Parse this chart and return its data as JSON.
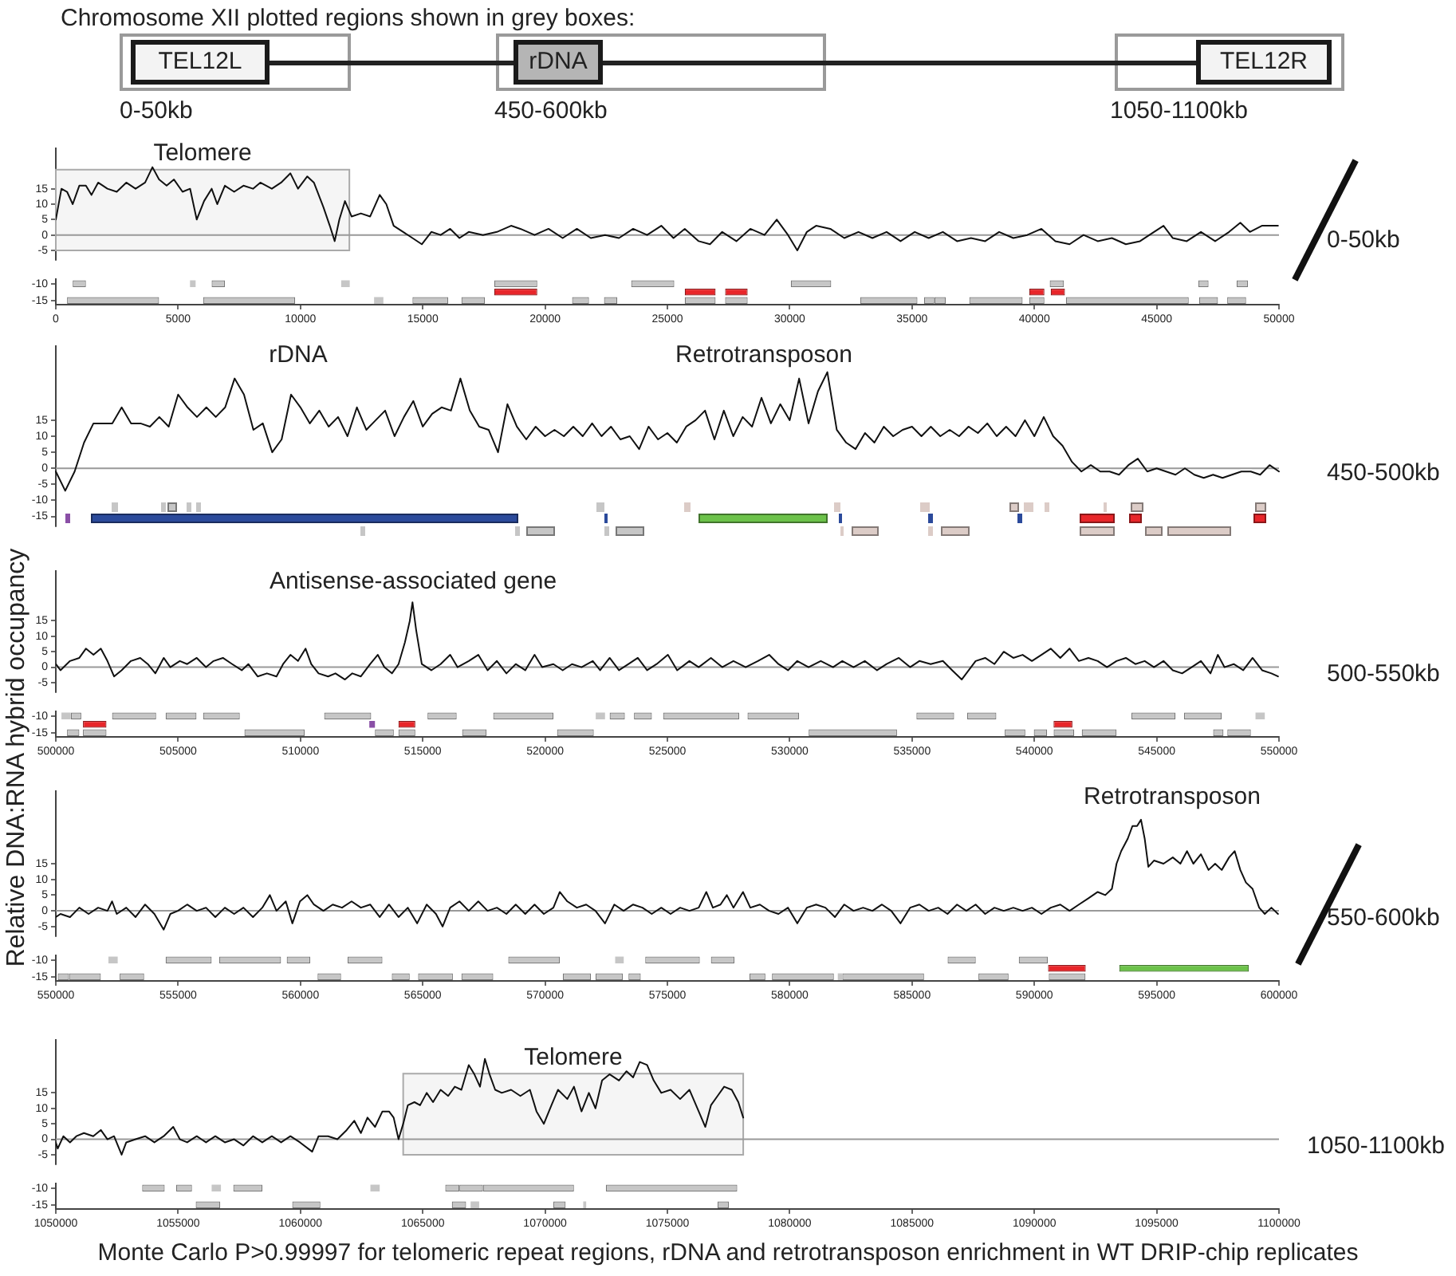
{
  "chart_data": [
    {
      "type": "other",
      "title": "Chromosome XII plotted regions shown in grey boxes:",
      "annotations": [
        "TEL12L",
        "rDNA",
        "TEL12R",
        "0-50kb",
        "450-600kb",
        "1050-1100kb"
      ]
    },
    {
      "type": "line",
      "tick_labels": "y",
      "xlim": [
        0,
        50000
      ],
      "ylim": [
        -8,
        28
      ],
      "yticks": [
        -5,
        0,
        5,
        10,
        15
      ],
      "color": "#111111",
      "ref_lines": [
        {
          "axis": "y",
          "value": 0,
          "color": "#999999"
        }
      ],
      "bands": [
        {
          "axis": "x",
          "from": 0,
          "to": 12000,
          "label": "Telomere",
          "color": "#aaaaaa"
        }
      ],
      "annotations": [
        "0-50kb"
      ],
      "x": [
        0,
        230,
        460,
        690,
        960,
        1230,
        1460,
        1730,
        2110,
        2490,
        2880,
        3260,
        3650,
        3950,
        4220,
        4530,
        4830,
        5180,
        5490,
        5760,
        6060,
        6370,
        6600,
        6910,
        7290,
        7670,
        8060,
        8360,
        8830,
        9210,
        9590,
        9900,
        10280,
        10550,
        10940,
        11200,
        11400,
        11590,
        11820,
        12090,
        12470,
        12850,
        13240,
        13510,
        13810,
        14200,
        14580,
        14960,
        15350,
        15730,
        16120,
        16500,
        16880,
        17460,
        18030,
        18610,
        18990,
        19570,
        20140,
        20720,
        21300,
        21870,
        22450,
        23020,
        23600,
        24170,
        24750,
        25250,
        25710,
        26280,
        26740,
        27240,
        27820,
        28390,
        28970,
        29470,
        29930,
        30310,
        30700,
        31080,
        31660,
        32230,
        32810,
        33380,
        33960,
        34530,
        35110,
        35680,
        36260,
        36840,
        37410,
        37990,
        38560,
        39140,
        39710,
        40290,
        40860,
        41440,
        42010,
        42590,
        43170,
        43740,
        44320,
        44890,
        45280,
        45660,
        46230,
        46810,
        47390,
        47960,
        48420,
        48810,
        49300,
        49960
      ],
      "values": [
        5,
        15,
        14,
        10,
        16,
        16,
        13,
        17,
        15,
        14,
        17,
        15,
        17,
        22,
        18,
        16,
        18,
        14,
        15,
        5,
        11,
        15,
        10,
        16,
        14,
        16,
        15,
        17,
        15,
        17,
        20,
        15,
        19,
        17,
        9,
        3,
        -2,
        5,
        11,
        6,
        7,
        6,
        13,
        10,
        3,
        1,
        -1,
        -3,
        1,
        0,
        2,
        -1,
        1,
        0,
        1,
        3,
        2,
        0,
        2,
        -1,
        2,
        -1,
        0,
        -1,
        2,
        0,
        3,
        -1,
        2,
        -2,
        -3,
        1,
        -2,
        2,
        0,
        5,
        0,
        -5,
        1,
        3,
        2,
        -1,
        1,
        -1,
        1,
        -2,
        1,
        -1,
        1,
        -2,
        -1,
        -2,
        1,
        -1,
        0,
        2,
        -2,
        -3,
        0,
        -2,
        -1,
        -3,
        -2,
        1,
        3,
        -1,
        -2,
        1,
        -2,
        1,
        4,
        1,
        3,
        3
      ]
    },
    {
      "type": "bar",
      "orientation": "horizontal",
      "categories": [
        "-10",
        null,
        "-15"
      ],
      "xlim": [
        0,
        50000
      ],
      "xticks": [
        0,
        5000,
        10000,
        15000,
        20000,
        25000,
        30000,
        35000,
        40000,
        45000,
        50000
      ],
      "series": [
        {
          "base": [
            690,
            17920,
            460
          ],
          "values": [
            540,
            1760,
            3760
          ],
          "colors": [
            "#c6c6c6",
            "#e8262a",
            "#c6c6c6"
          ]
        },
        {
          "base": [
            5485,
            25710,
            6020
          ],
          "values": [
            230,
            1260,
            3760
          ],
          "colors": [
            "#c6c6c6",
            "#e8262a",
            "#c6c6c6"
          ]
        },
        {
          "base": [
            6370,
            27360,
            13010
          ],
          "values": [
            540,
            920,
            380
          ],
          "colors": [
            "#c6c6c6",
            "#e8262a",
            "#c6c6c6"
          ]
        },
        {
          "base": [
            11665,
            39790,
            14580
          ],
          "values": [
            350,
            620,
            1460
          ],
          "colors": [
            "#c6c6c6",
            "#e8262a",
            "#c6c6c6"
          ]
        },
        {
          "base": [
            17920,
            40670,
            16580
          ],
          "values": [
            1760,
            580,
            960
          ],
          "colors": [
            "#c6c6c6",
            "#e8262a",
            "#c6c6c6"
          ]
        },
        {
          "base": [
            23520,
            null,
            21105
          ],
          "values": [
            1760,
            null,
            690
          ],
          "color": "#c6c6c6"
        },
        {
          "base": [
            30045,
            null,
            22410
          ],
          "values": [
            1650,
            null,
            540
          ],
          "color": "#c6c6c6"
        },
        {
          "base": [
            40630,
            null,
            25710
          ],
          "values": [
            580,
            null,
            1260
          ],
          "color": "#c6c6c6"
        },
        {
          "base": [
            46700,
            null,
            27360
          ],
          "values": [
            420,
            null,
            920
          ],
          "color": "#c6c6c6"
        },
        {
          "base": [
            48270,
            null,
            32880
          ],
          "values": [
            460,
            null,
            2340
          ],
          "color": "#c6c6c6"
        },
        {
          "base": [
            null,
            null,
            35490
          ],
          "values": [
            null,
            null,
            420
          ],
          "color": "#c6c6c6"
        },
        {
          "base": [
            null,
            null,
            35920
          ],
          "values": [
            null,
            null,
            460
          ],
          "color": "#c6c6c6"
        },
        {
          "base": [
            null,
            null,
            37340
          ],
          "values": [
            null,
            null,
            2180
          ],
          "color": "#c6c6c6"
        },
        {
          "base": [
            null,
            null,
            39790
          ],
          "values": [
            null,
            null,
            620
          ],
          "color": "#c6c6c6"
        },
        {
          "base": [
            null,
            null,
            41290
          ],
          "values": [
            null,
            null,
            5020
          ],
          "color": "#c6c6c6"
        },
        {
          "base": [
            null,
            null,
            46735
          ],
          "values": [
            null,
            null,
            770
          ],
          "color": "#c6c6c6"
        },
        {
          "base": [
            null,
            null,
            47885
          ],
          "values": [
            null,
            null,
            770
          ],
          "color": "#c6c6c6"
        }
      ]
    },
    {
      "type": "line",
      "tick_labels": "y",
      "ylim": [
        -18,
        38
      ],
      "yticks": [
        -15,
        -10,
        -5,
        0,
        5,
        10,
        15
      ],
      "color": "#111111",
      "ref_lines": [
        {
          "axis": "y",
          "value": 0,
          "color": "#999999"
        }
      ],
      "annotations": [
        "rDNA",
        "Retrotransposon",
        "450-500kb"
      ],
      "categories": [
        null,
        null,
        null,
        null,
        null,
        null,
        null,
        null,
        null,
        null,
        null,
        null,
        null,
        null,
        null,
        null,
        null,
        null,
        null,
        null,
        null,
        null,
        null,
        null,
        null,
        null,
        null,
        null,
        null,
        null,
        null,
        null,
        null,
        null,
        null,
        null,
        null,
        null,
        null,
        null,
        null,
        null,
        null,
        null,
        null,
        null,
        null,
        null,
        null,
        null,
        null,
        null,
        null,
        null,
        null,
        null,
        null,
        null,
        null,
        null,
        null,
        null,
        null,
        null,
        null,
        null,
        null,
        null,
        null,
        null,
        null,
        null,
        null,
        null,
        null,
        null,
        null,
        null,
        null,
        null,
        null,
        null,
        null,
        null,
        null,
        null,
        null,
        null,
        null,
        null,
        null,
        null,
        null,
        null,
        null,
        null,
        null,
        null,
        null,
        null,
        null,
        null,
        null,
        null,
        null,
        null,
        null,
        null,
        null,
        null,
        null,
        null,
        null,
        null,
        null,
        null,
        null,
        null,
        null,
        null,
        null,
        null,
        null,
        null,
        null,
        null,
        null,
        null,
        null,
        null,
        null
      ],
      "values": [
        -1,
        -7,
        -1,
        8,
        14,
        14,
        14,
        19,
        14,
        14,
        13,
        16,
        13,
        23,
        19,
        16,
        19,
        16,
        19,
        28,
        23,
        12,
        14,
        5,
        9,
        23,
        19,
        14,
        18,
        13,
        16,
        10,
        19,
        12,
        15,
        18,
        10,
        16,
        21,
        13,
        17,
        19,
        18,
        28,
        18,
        13,
        12,
        5,
        20,
        13,
        9,
        13,
        10,
        12,
        10,
        13,
        10,
        14,
        10,
        13,
        9,
        10,
        6,
        13,
        9,
        11,
        8,
        13,
        15,
        18,
        9,
        18,
        10,
        16,
        13,
        22,
        14,
        20,
        15,
        28,
        14,
        24,
        30,
        12,
        8,
        6,
        11,
        8,
        13,
        10,
        12,
        13,
        10,
        13,
        10,
        12,
        10,
        13,
        11,
        14,
        10,
        13,
        10,
        15,
        10,
        16,
        10,
        7,
        2,
        -1,
        1,
        -1,
        -1,
        -2,
        1,
        3,
        -1,
        0,
        -1,
        -2,
        0,
        -2,
        -3,
        -2,
        -3,
        -2,
        -1,
        -1,
        -2,
        1,
        -1
      ]
    },
    {
      "type": "line",
      "tick_labels": "y",
      "ylabel": "Relative DNA:RNA hybrid occupancy",
      "xlim": [
        500000,
        550000
      ],
      "ylim": [
        -8,
        31
      ],
      "yticks": [
        -5,
        0,
        5,
        10,
        15
      ],
      "color": "#111111",
      "ref_lines": [
        {
          "axis": "y",
          "value": 0,
          "color": "#999999"
        }
      ],
      "annotations": [
        "Antisense-associated gene",
        "500-550kb"
      ],
      "x": [
        500000,
        500190,
        500580,
        500960,
        501230,
        501540,
        501840,
        502110,
        502380,
        502690,
        503070,
        503450,
        503760,
        504070,
        504410,
        504680,
        505070,
        505370,
        505760,
        506140,
        506450,
        506830,
        507210,
        507600,
        507870,
        508250,
        508630,
        509020,
        509290,
        509590,
        509900,
        510210,
        510440,
        510740,
        511130,
        511430,
        511820,
        512120,
        512470,
        512850,
        513160,
        513430,
        513740,
        514010,
        514270,
        514470,
        514580,
        514730,
        514960,
        515350,
        515730,
        516120,
        516420,
        516880,
        517270,
        517650,
        518030,
        518420,
        518800,
        519190,
        519570,
        519880,
        520340,
        520720,
        521100,
        521490,
        521950,
        522250,
        522640,
        523020,
        523410,
        523790,
        524170,
        524560,
        525020,
        525400,
        525900,
        526280,
        526780,
        527240,
        527700,
        528200,
        528700,
        529160,
        529540,
        529930,
        530310,
        530770,
        531270,
        531770,
        532150,
        532610,
        533070,
        533570,
        533960,
        534460,
        534920,
        535300,
        535760,
        536260,
        536640,
        537030,
        537220,
        537600,
        537990,
        538370,
        538750,
        539140,
        539520,
        539900,
        540290,
        540670,
        541060,
        541440,
        541820,
        542210,
        542590,
        542970,
        543360,
        543740,
        544130,
        544510,
        544890,
        545280,
        545660,
        546040,
        546430,
        546810,
        547200,
        547500,
        547770,
        548150,
        548540,
        548920,
        549310,
        549690,
        549960
      ],
      "values": [
        1,
        -1,
        2,
        3,
        6,
        4,
        6,
        2,
        -3,
        -1,
        2,
        3,
        1,
        -2,
        3,
        0,
        2,
        1,
        3,
        0,
        2,
        3,
        1,
        -1,
        1,
        -3,
        -2,
        -3,
        1,
        4,
        2,
        6,
        1,
        -2,
        -3,
        -2,
        -4,
        -2,
        -3,
        1,
        4,
        0,
        -2,
        1,
        8,
        15,
        21,
        12,
        1,
        -1,
        1,
        4,
        0,
        2,
        4,
        -1,
        2,
        -2,
        1,
        -1,
        4,
        0,
        1,
        -1,
        1,
        0,
        2,
        -1,
        3,
        -1,
        1,
        3,
        -1,
        1,
        4,
        -1,
        2,
        0,
        3,
        0,
        2,
        0,
        2,
        4,
        1,
        -1,
        2,
        0,
        2,
        0,
        2,
        0,
        2,
        -1,
        1,
        3,
        0,
        2,
        1,
        2,
        -1,
        -4,
        -2,
        2,
        3,
        1,
        5,
        3,
        4,
        2,
        4,
        6,
        3,
        6,
        2,
        3,
        2,
        0,
        2,
        3,
        1,
        2,
        0,
        2,
        -1,
        -2,
        0,
        2,
        -2,
        4,
        0,
        1,
        -1,
        3,
        -1,
        -2,
        -3
      ]
    },
    {
      "type": "bar",
      "orientation": "horizontal",
      "categories": [
        "-10",
        null,
        "-15"
      ],
      "xlim": [
        500000,
        550000
      ],
      "xticks": [
        500000,
        505000,
        510000,
        515000,
        520000,
        525000,
        530000,
        535000,
        540000,
        545000,
        550000
      ],
      "series": [
        {
          "base": [
            500230,
            501110,
            500460
          ],
          "values": [
            380,
            960,
            500
          ],
          "colors": [
            "#c6c6c6",
            "#e8262a",
            "#c6c6c6"
          ]
        },
        {
          "base": [
            500620,
            512815,
            501110
          ],
          "values": [
            420,
            230,
            960
          ],
          "colors": [
            "#c6c6c6",
            "#8a4fa6",
            "#c6c6c6"
          ]
        },
        {
          "base": [
            502300,
            514005,
            507710
          ],
          "values": [
            1800,
            690,
            2460
          ],
          "colors": [
            "#c6c6c6",
            "#e8262a",
            "#c6c6c6"
          ]
        },
        {
          "base": [
            504490,
            540785,
            513045
          ],
          "values": [
            1260,
            770,
            770
          ],
          "colors": [
            "#c6c6c6",
            "#e8262a",
            "#c6c6c6"
          ]
        },
        {
          "base": [
            506020,
            null,
            514005
          ],
          "values": [
            1500,
            null,
            690
          ],
          "color": "#c6c6c6"
        },
        {
          "base": [
            510970,
            null,
            516610
          ],
          "values": [
            1920,
            null,
            1000
          ],
          "color": "#c6c6c6"
        },
        {
          "base": [
            515195,
            null,
            520490
          ],
          "values": [
            1190,
            null,
            1500
          ],
          "color": "#c6c6c6"
        },
        {
          "base": [
            517880,
            null,
            530775
          ],
          "values": [
            2460,
            null,
            3610
          ],
          "color": "#c6c6c6"
        },
        {
          "base": [
            522070,
            null,
            538790
          ],
          "values": [
            380,
            null,
            840
          ],
          "color": "#c6c6c6"
        },
        {
          "base": [
            522640,
            null,
            539980
          ],
          "values": [
            620,
            null,
            540
          ],
          "color": "#c6c6c6"
        },
        {
          "base": [
            523635,
            null,
            540790
          ],
          "values": [
            730,
            null,
            840
          ],
          "color": "#c6c6c6"
        },
        {
          "base": [
            524825,
            null,
            541940
          ],
          "values": [
            3110,
            null,
            1420
          ],
          "color": "#c6c6c6"
        },
        {
          "base": [
            528275,
            null,
            547310
          ],
          "values": [
            2110,
            null,
            420
          ],
          "color": "#c6c6c6"
        },
        {
          "base": [
            535180,
            null,
            547890
          ],
          "values": [
            1540,
            null,
            960
          ],
          "color": "#c6c6c6"
        },
        {
          "base": [
            537255,
            null,
            null
          ],
          "values": [
            1190,
            null,
            null
          ],
          "color": "#c6c6c6"
        },
        {
          "base": [
            543970,
            null,
            null
          ],
          "values": [
            1800,
            null,
            null
          ],
          "color": "#c6c6c6"
        },
        {
          "base": [
            546120,
            null,
            null
          ],
          "values": [
            1540,
            null,
            null
          ],
          "color": "#c6c6c6"
        },
        {
          "base": [
            549040,
            null,
            null
          ],
          "values": [
            380,
            null,
            null
          ],
          "color": "#c6c6c6"
        }
      ]
    },
    {
      "type": "line",
      "tick_labels": "y",
      "xlim": [
        550000,
        600000
      ],
      "ylim": [
        -8,
        38
      ],
      "yticks": [
        -5,
        0,
        5,
        10,
        15
      ],
      "color": "#111111",
      "ref_lines": [
        {
          "axis": "y",
          "value": 0,
          "color": "#999999"
        }
      ],
      "annotations": [
        "Retrotransposon",
        "550-600kb"
      ],
      "x": [
        550000,
        550190,
        550580,
        550960,
        551340,
        551730,
        552110,
        552300,
        552490,
        552880,
        553260,
        553650,
        554030,
        554410,
        554680,
        554990,
        555370,
        555760,
        556140,
        556520,
        556910,
        557290,
        557670,
        558060,
        558440,
        558750,
        559020,
        559400,
        559670,
        559980,
        560280,
        560550,
        560940,
        561320,
        561700,
        562090,
        562470,
        562850,
        563240,
        563620,
        564010,
        564390,
        564770,
        565160,
        565540,
        565810,
        566120,
        566500,
        566880,
        567270,
        567650,
        568030,
        568420,
        568800,
        569190,
        569570,
        569950,
        570340,
        570600,
        570910,
        571300,
        571680,
        572060,
        572450,
        572830,
        573210,
        573600,
        573980,
        574360,
        574750,
        575130,
        575520,
        575900,
        576280,
        576590,
        576860,
        577170,
        577430,
        577700,
        578090,
        578390,
        578780,
        579160,
        579540,
        579930,
        580310,
        580700,
        581080,
        581460,
        581850,
        582230,
        582610,
        583000,
        583380,
        583770,
        584150,
        584530,
        584920,
        585300,
        585680,
        586070,
        586450,
        586840,
        587220,
        587600,
        587990,
        588370,
        588750,
        589140,
        589520,
        589900,
        590290,
        590670,
        591060,
        591440,
        591820,
        592210,
        592590,
        592900,
        593170,
        593360,
        593550,
        593820,
        594010,
        594200,
        594360,
        594510,
        594660,
        594890,
        595280,
        595660,
        595970,
        596240,
        596500,
        596810,
        597120,
        597390,
        597660,
        597960,
        598190,
        598420,
        598650,
        598920,
        599190,
        599420,
        599690,
        599960
      ],
      "values": [
        -2,
        -1,
        -2,
        1,
        -1,
        1,
        0,
        3,
        -1,
        1,
        -2,
        2,
        -1,
        -6,
        -1,
        0,
        2,
        0,
        1,
        -2,
        1,
        -1,
        1,
        -2,
        1,
        5,
        0,
        3,
        -4,
        3,
        5,
        2,
        0,
        2,
        1,
        3,
        1,
        2,
        -2,
        2,
        -2,
        1,
        -4,
        2,
        -1,
        -5,
        1,
        3,
        0,
        3,
        0,
        1,
        -1,
        2,
        -1,
        2,
        -1,
        1,
        6,
        3,
        1,
        2,
        0,
        -4,
        2,
        0,
        2,
        1,
        -1,
        1,
        -1,
        1,
        0,
        1,
        6,
        1,
        2,
        5,
        1,
        6,
        1,
        2,
        0,
        -1,
        1,
        -4,
        1,
        2,
        1,
        -2,
        2,
        0,
        1,
        0,
        2,
        0,
        -4,
        1,
        2,
        0,
        1,
        -1,
        2,
        0,
        2,
        -1,
        1,
        0,
        1,
        0,
        1,
        -1,
        1,
        2,
        0,
        2,
        4,
        6,
        5,
        7,
        15,
        19,
        23,
        27,
        27,
        29,
        23,
        14,
        16,
        15,
        17,
        15,
        19,
        15,
        18,
        13,
        15,
        13,
        17,
        19,
        13,
        9,
        7,
        1,
        -1,
        1,
        -1
      ]
    },
    {
      "type": "bar",
      "orientation": "horizontal",
      "categories": [
        "-10",
        null,
        "-15"
      ],
      "xlim": [
        550000,
        600000
      ],
      "xticks": [
        550000,
        555000,
        560000,
        565000,
        570000,
        575000,
        580000,
        585000,
        590000,
        595000,
        600000
      ],
      "series": [
        {
          "base": [
            552150,
            590560,
            550080
          ],
          "values": [
            380,
            1540,
            460
          ],
          "colors": [
            "#c6c6c6",
            "#e8262a",
            "#c6c6c6"
          ]
        },
        {
          "base": [
            554490,
            593470,
            550540
          ],
          "values": [
            1880,
            5300,
            1300
          ],
          "colors": [
            "#c6c6c6",
            "#6cc24a",
            "#c6c6c6"
          ]
        },
        {
          "base": [
            556675,
            null,
            552610
          ],
          "values": [
            2530,
            null,
            1000
          ],
          "color": "#c6c6c6"
        },
        {
          "base": [
            559440,
            null,
            560700
          ],
          "values": [
            960,
            null,
            960
          ],
          "color": "#c6c6c6"
        },
        {
          "base": [
            561930,
            null,
            563735
          ],
          "values": [
            1420,
            null,
            730
          ],
          "color": "#c6c6c6"
        },
        {
          "base": [
            568495,
            null,
            564810
          ],
          "values": [
            2110,
            null,
            1420
          ],
          "color": "#c6c6c6"
        },
        {
          "base": [
            572865,
            null,
            566580
          ],
          "values": [
            350,
            null,
            1300
          ],
          "color": "#c6c6c6"
        },
        {
          "base": [
            574095,
            null,
            570725
          ],
          "values": [
            2230,
            null,
            1150
          ],
          "color": "#c6c6c6"
        },
        {
          "base": [
            576780,
            null,
            572065
          ],
          "values": [
            960,
            null,
            1110
          ],
          "color": "#c6c6c6"
        },
        {
          "base": [
            586455,
            null,
            573410
          ],
          "values": [
            1150,
            null,
            500
          ],
          "color": "#c6c6c6"
        },
        {
          "base": [
            589365,
            null,
            578355
          ],
          "values": [
            1190,
            null,
            650
          ],
          "color": "#c6c6c6"
        },
        {
          "base": [
            null,
            null,
            579275
          ],
          "values": [
            null,
            null,
            2530
          ],
          "color": "#c6c6c6"
        },
        {
          "base": [
            null,
            null,
            581965
          ],
          "values": [
            null,
            null,
            190
          ],
          "color": "#c6c6c6"
        },
        {
          "base": [
            null,
            null,
            582150
          ],
          "values": [
            null,
            null,
            3340
          ],
          "color": "#c6c6c6"
        },
        {
          "base": [
            null,
            null,
            587715
          ],
          "values": [
            null,
            null,
            1230
          ],
          "color": "#c6c6c6"
        },
        {
          "base": [
            null,
            null,
            590590
          ],
          "values": [
            null,
            null,
            1500
          ],
          "color": "#c6c6c6"
        }
      ]
    },
    {
      "type": "line",
      "tick_labels": "y",
      "xlim": [
        1050000,
        1100000
      ],
      "ylim": [
        -8,
        32
      ],
      "yticks": [
        -5,
        0,
        5,
        10,
        15
      ],
      "color": "#111111",
      "ref_lines": [
        {
          "axis": "y",
          "value": 0,
          "color": "#999999"
        }
      ],
      "bands": [
        {
          "axis": "x",
          "from": 1064200,
          "to": 1078100,
          "label": "Telomere",
          "color": "#aaaaaa"
        }
      ],
      "annotations": [
        "1050-1100kb"
      ],
      "x": [
        1050000,
        1050080,
        1050310,
        1050580,
        1050840,
        1051150,
        1051530,
        1051840,
        1052110,
        1052380,
        1052690,
        1052880,
        1053260,
        1053650,
        1054030,
        1054410,
        1054800,
        1055070,
        1055370,
        1055760,
        1056140,
        1056520,
        1056910,
        1057290,
        1057670,
        1058060,
        1058440,
        1058830,
        1059210,
        1059590,
        1059980,
        1060480,
        1060740,
        1061130,
        1061510,
        1061890,
        1062200,
        1062470,
        1062740,
        1063050,
        1063350,
        1063620,
        1063810,
        1064010,
        1064200,
        1064390,
        1064660,
        1064890,
        1065160,
        1065420,
        1065730,
        1066040,
        1066310,
        1066580,
        1066880,
        1067110,
        1067340,
        1067540,
        1067730,
        1067960,
        1068230,
        1068610,
        1068990,
        1069380,
        1069650,
        1069950,
        1070260,
        1070530,
        1070910,
        1071180,
        1071490,
        1071790,
        1072060,
        1072330,
        1072640,
        1073020,
        1073330,
        1073600,
        1073870,
        1074170,
        1074440,
        1074750,
        1075130,
        1075520,
        1075900,
        1076280,
        1076550,
        1076780,
        1077050,
        1077320,
        1077630,
        1077900,
        1078100
      ],
      "values": [
        -1,
        -3,
        1,
        -1,
        1,
        2,
        1,
        3,
        0,
        1,
        -5,
        -1,
        0,
        1,
        -1,
        1,
        4,
        0,
        -1,
        1,
        -1,
        1,
        -1,
        0,
        -2,
        1,
        -1,
        1,
        -1,
        1,
        -1,
        -4,
        1,
        1,
        0,
        3,
        6,
        2,
        7,
        4,
        9,
        9,
        7,
        0,
        5,
        11,
        12,
        11,
        15,
        12,
        16,
        14,
        17,
        16,
        24,
        21,
        17,
        26,
        21,
        16,
        15,
        16,
        14,
        16,
        9,
        5,
        11,
        16,
        13,
        17,
        9,
        15,
        10,
        19,
        21,
        19,
        22,
        20,
        25,
        24,
        19,
        15,
        16,
        13,
        16,
        9,
        4,
        11,
        14,
        17,
        16,
        12,
        7
      ]
    },
    {
      "type": "bar",
      "orientation": "horizontal",
      "categories": [
        "-10",
        null,
        "-15"
      ],
      "xlim": [
        1050000,
        1100000
      ],
      "xticks": [
        1050000,
        1055000,
        1060000,
        1065000,
        1070000,
        1075000,
        1080000,
        1085000,
        1090000,
        1095000,
        1100000
      ],
      "annotations": [
        "Monte Carlo P>0.99997 for telomeric repeat regions, rDNA and retrotransposon enrichment in WT DRIP-chip replicates"
      ],
      "series": [
        {
          "base": [
            1053530,
            null,
            1055720
          ],
          "values": [
            920,
            null,
            1000
          ],
          "color": "#c6c6c6"
        },
        {
          "base": [
            1054915,
            null,
            1059665
          ],
          "values": [
            650,
            null,
            1150
          ],
          "color": "#c6c6c6"
        },
        {
          "base": [
            1056370,
            null,
            1066190
          ],
          "values": [
            380,
            null,
            580
          ],
          "color": "#c6c6c6"
        },
        {
          "base": [
            1057255,
            null,
            1066955
          ],
          "values": [
            1190,
            null,
            350
          ],
          "color": "#c6c6c6"
        },
        {
          "base": [
            1062860,
            null,
            1070340
          ],
          "values": [
            380,
            null,
            500
          ],
          "color": "#c6c6c6"
        },
        {
          "base": [
            1065920,
            null,
            1071560
          ],
          "values": [
            580,
            null,
            120
          ],
          "color": "#c6c6c6"
        },
        {
          "base": [
            1066500,
            null,
            1077050
          ],
          "values": [
            960,
            null,
            460
          ],
          "color": "#c6c6c6"
        },
        {
          "base": [
            1067460,
            null,
            null
          ],
          "values": [
            3720,
            null,
            null
          ],
          "color": "#c6c6c6"
        },
        {
          "base": [
            1072485,
            null,
            null
          ],
          "values": [
            5370,
            null,
            null
          ],
          "color": "#c6c6c6"
        }
      ]
    }
  ]
}
